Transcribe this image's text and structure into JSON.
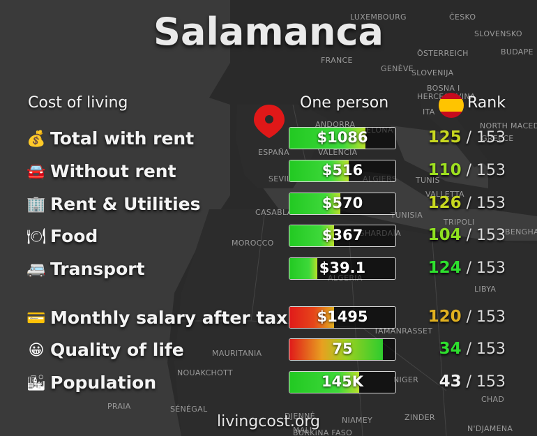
{
  "title": "Salamanca",
  "headers": {
    "cost_of_living": "Cost of living",
    "one_person": "One person",
    "rank": "Rank"
  },
  "rows": [
    {
      "icon": "money-bag-icon",
      "glyph": "💰",
      "label": "Total with rent",
      "value": "$1086",
      "level": 0.72,
      "bar": "green",
      "rank": "125",
      "total": "/ 153",
      "rank_color": "#c8d820"
    },
    {
      "icon": "car-icon",
      "glyph": "🚘",
      "label": "Without rent",
      "value": "$516",
      "level": 0.56,
      "bar": "green",
      "rank": "110",
      "total": "/ 153",
      "rank_color": "#9ee020"
    },
    {
      "icon": "building-icon",
      "glyph": "🏢",
      "label": "Rent & Utilities",
      "value": "$570",
      "level": 0.48,
      "bar": "green",
      "rank": "126",
      "total": "/ 153",
      "rank_color": "#c8d820"
    },
    {
      "icon": "plate-cutlery-icon",
      "glyph": "🍽",
      "label": "Food",
      "value": "$367",
      "level": 0.42,
      "bar": "green",
      "rank": "104",
      "total": "/ 153",
      "rank_color": "#8ee020"
    },
    {
      "icon": "minibus-icon",
      "glyph": "🚐",
      "label": "Transport",
      "value": "$39.1",
      "level": 0.26,
      "bar": "green",
      "rank": "124",
      "total": "/ 153",
      "rank_color": "#2ee02e"
    },
    {
      "icon": "credit-card-icon",
      "glyph": "💳",
      "label": "Monthly salary after tax",
      "value": "$1495",
      "level": 0.42,
      "bar": "red",
      "rank": "120",
      "total": "/ 153",
      "rank_color": "#e0b020"
    },
    {
      "icon": "smiley-icon",
      "glyph": "😀",
      "label": "Quality of life",
      "value": "75",
      "level": 0.88,
      "bar": "quality",
      "rank": "34",
      "total": "/ 153",
      "rank_color": "#2ee02e"
    },
    {
      "icon": "city-chart-icon",
      "glyph": "🏙",
      "label": "Population",
      "value": "145K",
      "level": 0.66,
      "bar": "green",
      "rank": "43",
      "total": "/ 153",
      "rank_color": "#f2f2f2"
    }
  ],
  "map_labels": [
    "LUXEMBOURG",
    "ČESKO",
    "SLOVENSKO",
    "FRANCE",
    "ÖSTERREICH",
    "BUDAPE",
    "GENÈVE",
    "SLOVENIJA",
    "BOSNA I",
    "HERCEGOVINA",
    "ITA",
    "NORTH MACED",
    "ANDORRA",
    "BARCELONA",
    "GREECE",
    "ESPAÑA",
    "VALENCIA",
    "SEVILLA",
    "ALGIERS",
    "TUNIS",
    "VALLETTA",
    "CASABLANCA",
    "TUNISIA",
    "TRIPOLI",
    "BENGHA",
    "MOROCCO",
    "GHARDAÏA",
    "ALGERIA",
    "LIBYA",
    "TAMANRASSET",
    "MAURITANIA",
    "NOUAKCHOTT",
    "NIGER",
    "SÉNÉGAL",
    "PRAIA",
    "DJENNÉ",
    "NIAMEY",
    "ZINDER",
    "N'DJAMENA",
    "CHAD",
    "MALI",
    "BURKINA FASO"
  ],
  "colors": {
    "background": "#1d1d1d",
    "land": "#2b2b2b",
    "sea": "#3f3f3f",
    "green": "#2ecc2e",
    "red": "#e02020",
    "pin": "#e01818"
  },
  "footer": "livingcost.org"
}
